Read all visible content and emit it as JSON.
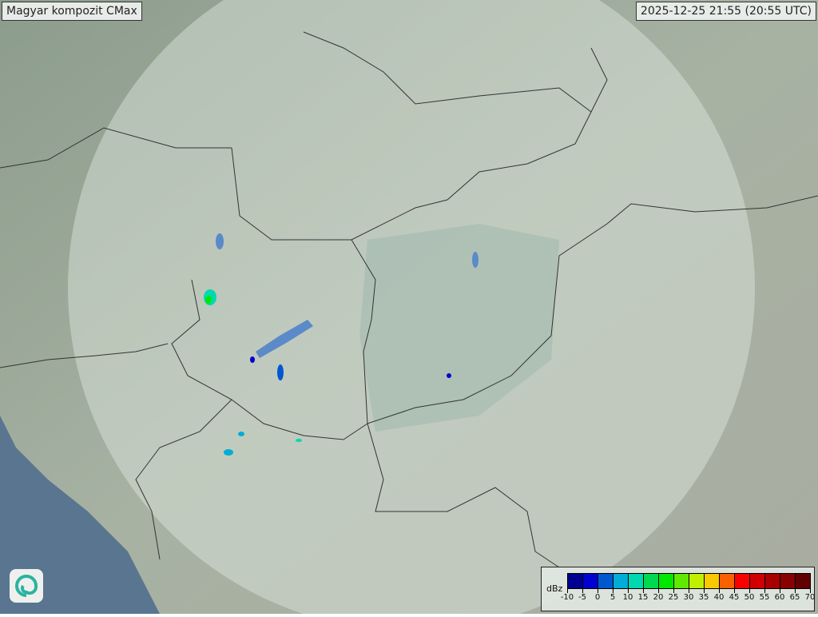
{
  "header": {
    "title": "Magyar kompozit  CMax",
    "timestamp": "2025-12-25 21:55 (20:55 UTC)"
  },
  "legend": {
    "unit": "dBz",
    "colors": [
      "#000090",
      "#0000d0",
      "#0058d0",
      "#00acd8",
      "#00d8b0",
      "#00d850",
      "#00e800",
      "#60e800",
      "#c0f000",
      "#f8c800",
      "#f86000",
      "#f80000",
      "#d00000",
      "#a80000",
      "#880000",
      "#600000"
    ],
    "labels": [
      "-10",
      "-5",
      "0",
      "5",
      "10",
      "15",
      "20",
      "25",
      "30",
      "35",
      "40",
      "45",
      "50",
      "55",
      "60",
      "65",
      "70"
    ]
  },
  "logo": {
    "icon": "swirl-logo-icon"
  },
  "colors": {
    "coverage": "#dfe8e0",
    "land": "#9aa89a",
    "sea": "#5a7590",
    "border": "#333333",
    "river": "#5a8ac8"
  }
}
